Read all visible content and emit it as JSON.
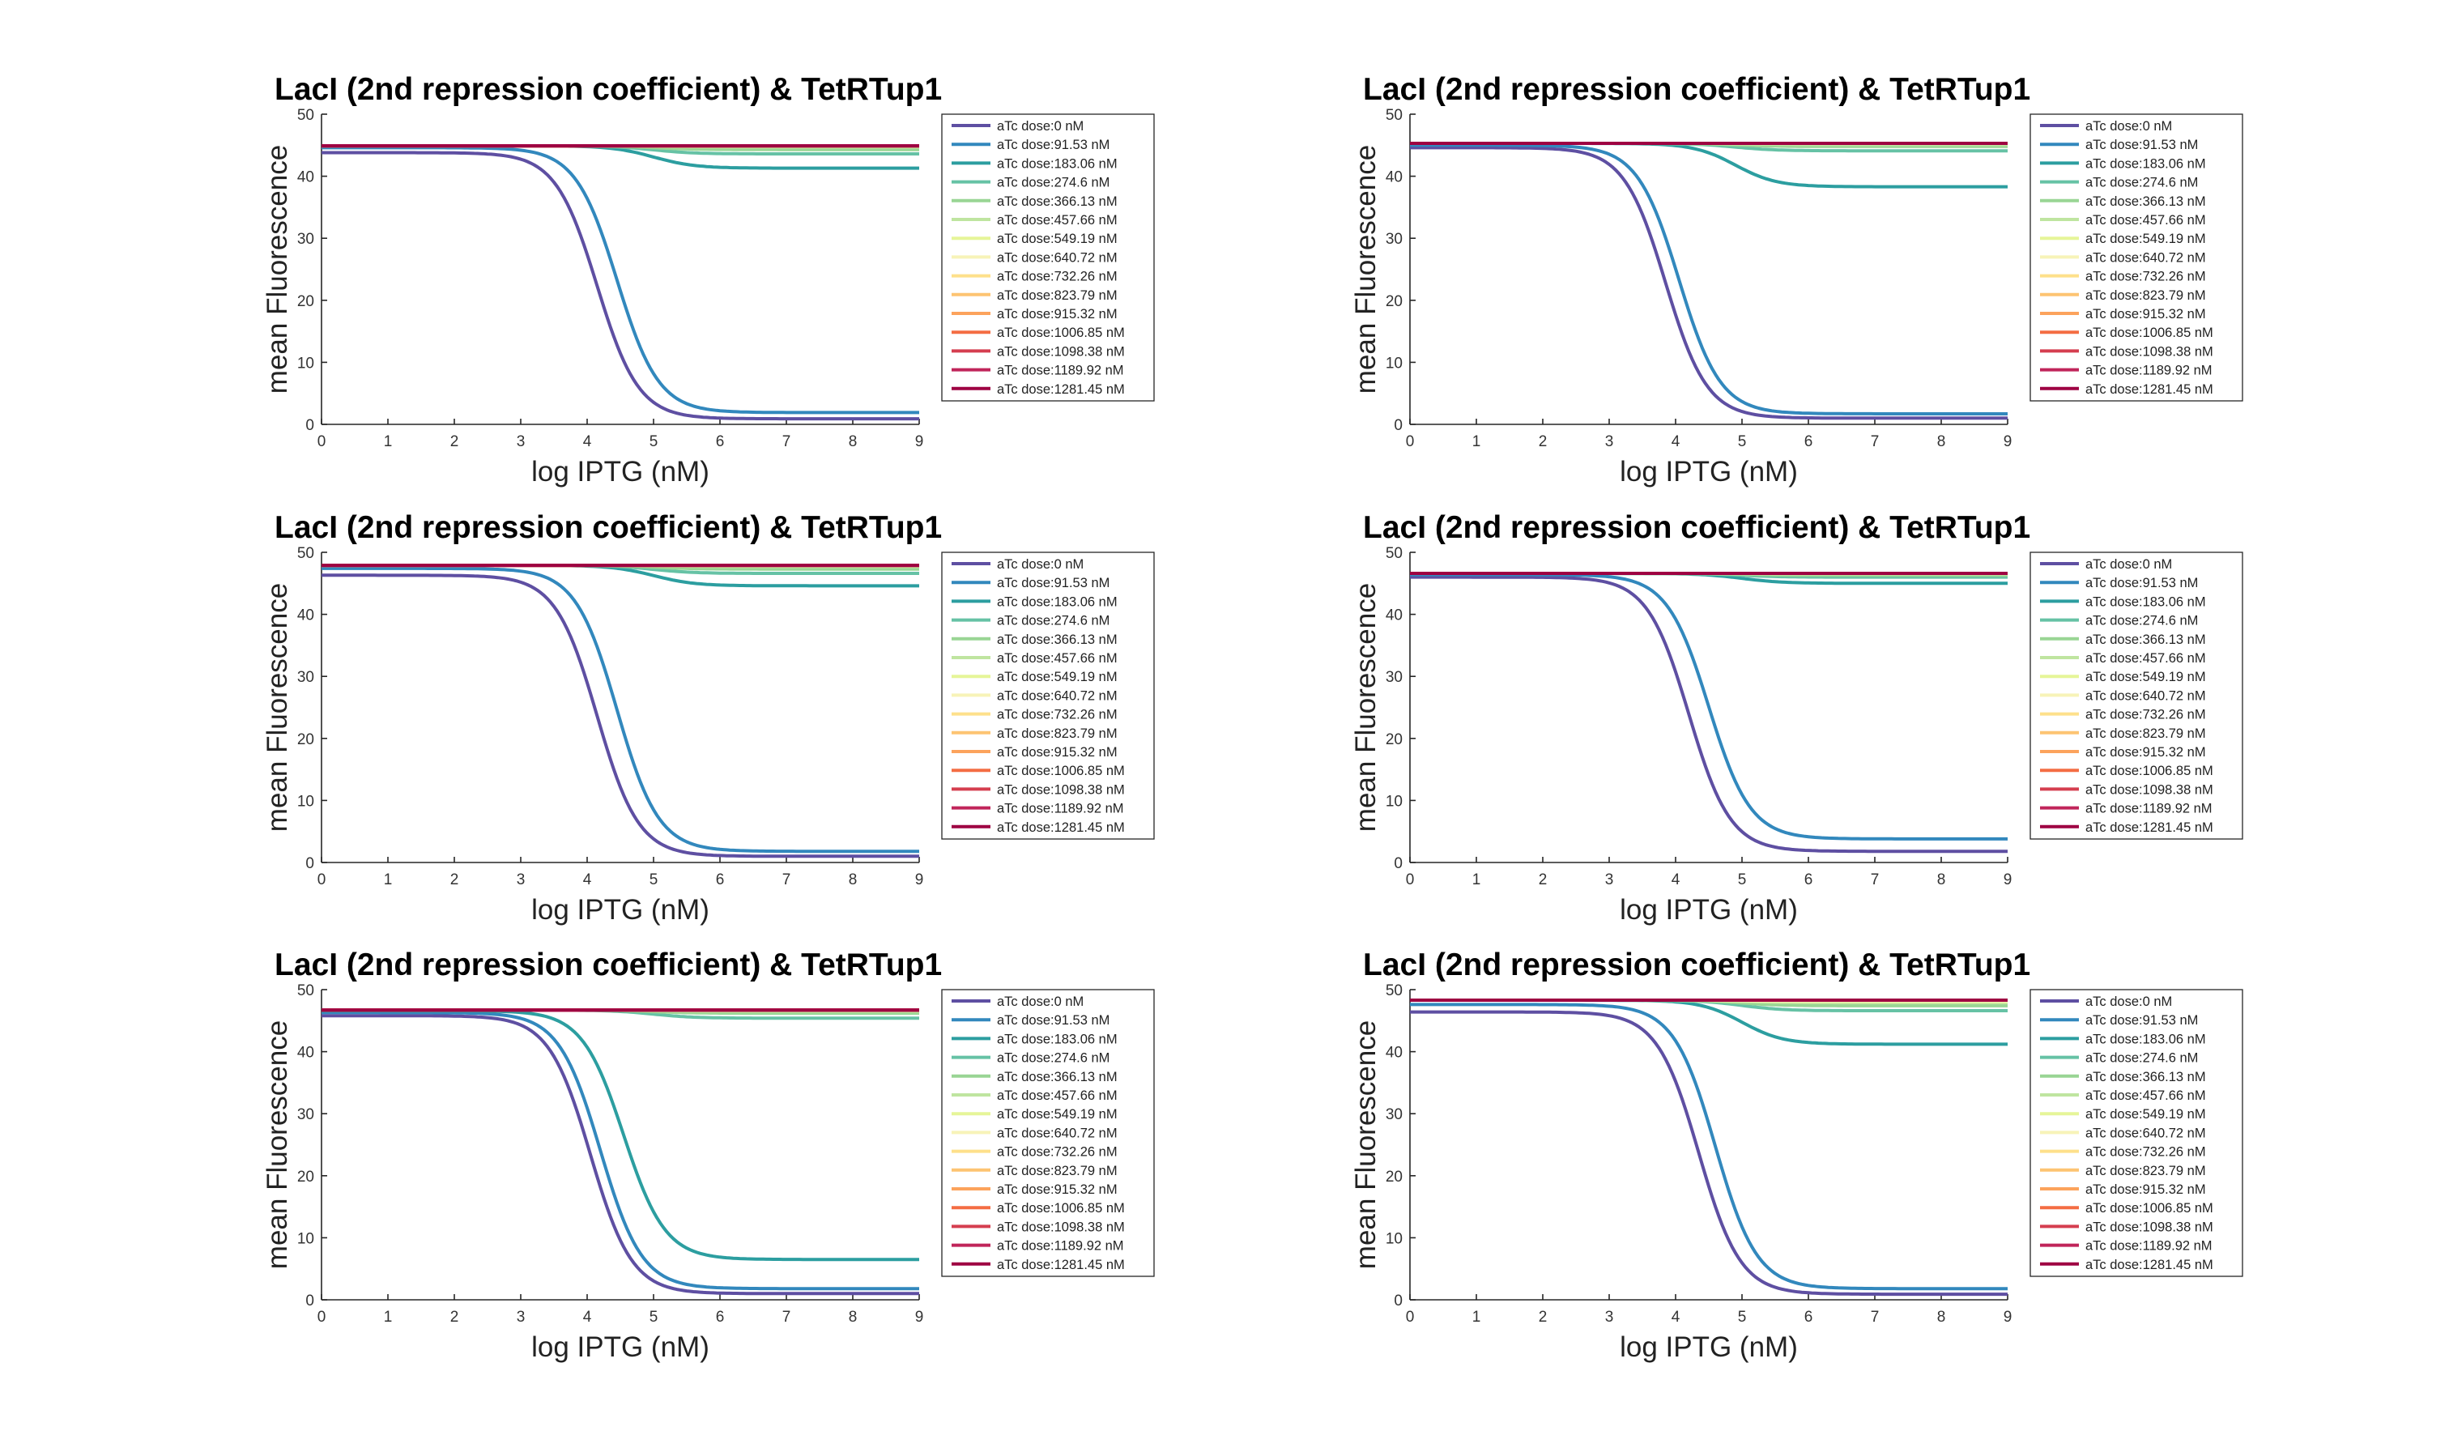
{
  "chart_data": [
    {
      "type": "line",
      "title": "LacI (2nd repression coefficient) & TetRTup1",
      "xlabel": "log IPTG (nM)",
      "ylabel": "mean Fluorescence",
      "xlim": [
        0,
        9
      ],
      "ylim": [
        0,
        50
      ],
      "xticks": [
        "0",
        "1",
        "2",
        "3",
        "4",
        "5",
        "6",
        "7",
        "8",
        "9"
      ],
      "yticks": [
        "0",
        "10",
        "20",
        "30",
        "40",
        "50"
      ],
      "legend_position": "outside-right-top",
      "series": [
        {
          "name": "aTc dose:0 nM",
          "color": "#5e4fa2",
          "y_low": 0.9,
          "y_high": 43.8,
          "midpoint": 4.15
        },
        {
          "name": "aTc dose:91.53 nM",
          "color": "#3288bd",
          "y_low": 1.9,
          "y_high": 44.6,
          "midpoint": 4.45
        },
        {
          "name": "aTc dose:183.06 nM",
          "color": "#2c9ea0",
          "y_low": 41.3,
          "y_high": 44.9,
          "midpoint": 5.0
        },
        {
          "name": "aTc dose:274.6 nM",
          "color": "#66c2a5",
          "y_low": 43.6,
          "y_high": 44.9,
          "midpoint": 5.0
        },
        {
          "name": "aTc dose:366.13 nM",
          "color": "#99d594",
          "y_low": 44.3,
          "y_high": 44.9,
          "midpoint": 5.0
        },
        {
          "name": "aTc dose:457.66 nM",
          "color": "#bfe5a0",
          "y_low": 44.7,
          "y_high": 44.9,
          "midpoint": 5.0
        },
        {
          "name": "aTc dose:549.19 nM",
          "color": "#e6f598",
          "y_low": 44.9,
          "y_high": 44.9,
          "midpoint": 5.0
        },
        {
          "name": "aTc dose:640.72 nM",
          "color": "#f7f3b8",
          "y_low": 44.9,
          "y_high": 44.9,
          "midpoint": 5.0
        },
        {
          "name": "aTc dose:732.26 nM",
          "color": "#fee08b",
          "y_low": 44.9,
          "y_high": 44.9,
          "midpoint": 5.0
        },
        {
          "name": "aTc dose:823.79 nM",
          "color": "#fdc472",
          "y_low": 44.9,
          "y_high": 44.9,
          "midpoint": 5.0
        },
        {
          "name": "aTc dose:915.32 nM",
          "color": "#fca35c",
          "y_low": 44.9,
          "y_high": 44.9,
          "midpoint": 5.0
        },
        {
          "name": "aTc dose:1006.85 nM",
          "color": "#f46d43",
          "y_low": 44.9,
          "y_high": 44.9,
          "midpoint": 5.0
        },
        {
          "name": "aTc dose:1098.38 nM",
          "color": "#d53e4f",
          "y_low": 44.9,
          "y_high": 44.9,
          "midpoint": 5.0
        },
        {
          "name": "aTc dose:1189.92 nM",
          "color": "#c0255a",
          "y_low": 44.9,
          "y_high": 44.9,
          "midpoint": 5.0
        },
        {
          "name": "aTc dose:1281.45 nM",
          "color": "#9e0142",
          "y_low": 44.9,
          "y_high": 44.9,
          "midpoint": 5.0
        }
      ]
    },
    {
      "type": "line",
      "title": "LacI (2nd repression coefficient) & TetRTup1",
      "xlabel": "log IPTG (nM)",
      "ylabel": "mean Fluorescence",
      "xlim": [
        0,
        9
      ],
      "ylim": [
        0,
        50
      ],
      "xticks": [
        "0",
        "1",
        "2",
        "3",
        "4",
        "5",
        "6",
        "7",
        "8",
        "9"
      ],
      "yticks": [
        "0",
        "10",
        "20",
        "30",
        "40",
        "50"
      ],
      "legend_position": "outside-right-top",
      "series": [
        {
          "name": "aTc dose:0 nM",
          "color": "#5e4fa2",
          "y_low": 1.0,
          "y_high": 44.6,
          "midpoint": 3.85
        },
        {
          "name": "aTc dose:91.53 nM",
          "color": "#3288bd",
          "y_low": 1.7,
          "y_high": 45.0,
          "midpoint": 4.05
        },
        {
          "name": "aTc dose:183.06 nM",
          "color": "#2c9ea0",
          "y_low": 38.3,
          "y_high": 45.3,
          "midpoint": 4.9
        },
        {
          "name": "aTc dose:274.6 nM",
          "color": "#66c2a5",
          "y_low": 44.1,
          "y_high": 45.3,
          "midpoint": 4.9
        },
        {
          "name": "aTc dose:366.13 nM",
          "color": "#99d594",
          "y_low": 44.8,
          "y_high": 45.3,
          "midpoint": 4.9
        },
        {
          "name": "aTc dose:457.66 nM",
          "color": "#bfe5a0",
          "y_low": 45.1,
          "y_high": 45.3,
          "midpoint": 4.9
        },
        {
          "name": "aTc dose:549.19 nM",
          "color": "#e6f598",
          "y_low": 45.3,
          "y_high": 45.3,
          "midpoint": 4.9
        },
        {
          "name": "aTc dose:640.72 nM",
          "color": "#f7f3b8",
          "y_low": 45.3,
          "y_high": 45.3,
          "midpoint": 4.9
        },
        {
          "name": "aTc dose:732.26 nM",
          "color": "#fee08b",
          "y_low": 45.3,
          "y_high": 45.3,
          "midpoint": 4.9
        },
        {
          "name": "aTc dose:823.79 nM",
          "color": "#fdc472",
          "y_low": 45.3,
          "y_high": 45.3,
          "midpoint": 4.9
        },
        {
          "name": "aTc dose:915.32 nM",
          "color": "#fca35c",
          "y_low": 45.3,
          "y_high": 45.3,
          "midpoint": 4.9
        },
        {
          "name": "aTc dose:1006.85 nM",
          "color": "#f46d43",
          "y_low": 45.3,
          "y_high": 45.3,
          "midpoint": 4.9
        },
        {
          "name": "aTc dose:1098.38 nM",
          "color": "#d53e4f",
          "y_low": 45.3,
          "y_high": 45.3,
          "midpoint": 4.9
        },
        {
          "name": "aTc dose:1189.92 nM",
          "color": "#c0255a",
          "y_low": 45.3,
          "y_high": 45.3,
          "midpoint": 4.9
        },
        {
          "name": "aTc dose:1281.45 nM",
          "color": "#9e0142",
          "y_low": 45.3,
          "y_high": 45.3,
          "midpoint": 4.9
        }
      ]
    },
    {
      "type": "line",
      "title": "LacI (2nd repression coefficient) & TetRTup1",
      "xlabel": "log IPTG (nM)",
      "ylabel": "mean Fluorescence",
      "xlim": [
        0,
        9
      ],
      "ylim": [
        0,
        50
      ],
      "xticks": [
        "0",
        "1",
        "2",
        "3",
        "4",
        "5",
        "6",
        "7",
        "8",
        "9"
      ],
      "yticks": [
        "0",
        "10",
        "20",
        "30",
        "40",
        "50"
      ],
      "legend_position": "outside-right-top",
      "series": [
        {
          "name": "aTc dose:0 nM",
          "color": "#5e4fa2",
          "y_low": 1.0,
          "y_high": 46.3,
          "midpoint": 4.15
        },
        {
          "name": "aTc dose:91.53 nM",
          "color": "#3288bd",
          "y_low": 1.8,
          "y_high": 47.4,
          "midpoint": 4.45
        },
        {
          "name": "aTc dose:183.06 nM",
          "color": "#2c9ea0",
          "y_low": 44.6,
          "y_high": 47.9,
          "midpoint": 5.0
        },
        {
          "name": "aTc dose:274.6 nM",
          "color": "#66c2a5",
          "y_low": 46.6,
          "y_high": 47.9,
          "midpoint": 5.0
        },
        {
          "name": "aTc dose:366.13 nM",
          "color": "#99d594",
          "y_low": 47.3,
          "y_high": 47.9,
          "midpoint": 5.0
        },
        {
          "name": "aTc dose:457.66 nM",
          "color": "#bfe5a0",
          "y_low": 47.7,
          "y_high": 47.9,
          "midpoint": 5.0
        },
        {
          "name": "aTc dose:549.19 nM",
          "color": "#e6f598",
          "y_low": 47.9,
          "y_high": 47.9,
          "midpoint": 5.0
        },
        {
          "name": "aTc dose:640.72 nM",
          "color": "#f7f3b8",
          "y_low": 47.9,
          "y_high": 47.9,
          "midpoint": 5.0
        },
        {
          "name": "aTc dose:732.26 nM",
          "color": "#fee08b",
          "y_low": 47.9,
          "y_high": 47.9,
          "midpoint": 5.0
        },
        {
          "name": "aTc dose:823.79 nM",
          "color": "#fdc472",
          "y_low": 47.9,
          "y_high": 47.9,
          "midpoint": 5.0
        },
        {
          "name": "aTc dose:915.32 nM",
          "color": "#fca35c",
          "y_low": 47.9,
          "y_high": 47.9,
          "midpoint": 5.0
        },
        {
          "name": "aTc dose:1006.85 nM",
          "color": "#f46d43",
          "y_low": 47.9,
          "y_high": 47.9,
          "midpoint": 5.0
        },
        {
          "name": "aTc dose:1098.38 nM",
          "color": "#d53e4f",
          "y_low": 47.9,
          "y_high": 47.9,
          "midpoint": 5.0
        },
        {
          "name": "aTc dose:1189.92 nM",
          "color": "#c0255a",
          "y_low": 47.9,
          "y_high": 47.9,
          "midpoint": 5.0
        },
        {
          "name": "aTc dose:1281.45 nM",
          "color": "#9e0142",
          "y_low": 47.9,
          "y_high": 47.9,
          "midpoint": 5.0
        }
      ]
    },
    {
      "type": "line",
      "title": "LacI (2nd repression coefficient) & TetRTup1",
      "xlabel": "log IPTG (nM)",
      "ylabel": "mean Fluorescence",
      "xlim": [
        0,
        9
      ],
      "ylim": [
        0,
        50
      ],
      "xticks": [
        "0",
        "1",
        "2",
        "3",
        "4",
        "5",
        "6",
        "7",
        "8",
        "9"
      ],
      "yticks": [
        "0",
        "10",
        "20",
        "30",
        "40",
        "50"
      ],
      "legend_position": "outside-right-top",
      "series": [
        {
          "name": "aTc dose:0 nM",
          "color": "#5e4fa2",
          "y_low": 1.8,
          "y_high": 46.0,
          "midpoint": 4.2
        },
        {
          "name": "aTc dose:91.53 nM",
          "color": "#3288bd",
          "y_low": 3.8,
          "y_high": 46.4,
          "midpoint": 4.5
        },
        {
          "name": "aTc dose:183.06 nM",
          "color": "#2c9ea0",
          "y_low": 45.0,
          "y_high": 46.6,
          "midpoint": 5.0
        },
        {
          "name": "aTc dose:274.6 nM",
          "color": "#66c2a5",
          "y_low": 46.0,
          "y_high": 46.6,
          "midpoint": 5.0
        },
        {
          "name": "aTc dose:366.13 nM",
          "color": "#99d594",
          "y_low": 46.3,
          "y_high": 46.6,
          "midpoint": 5.0
        },
        {
          "name": "aTc dose:457.66 nM",
          "color": "#bfe5a0",
          "y_low": 46.5,
          "y_high": 46.6,
          "midpoint": 5.0
        },
        {
          "name": "aTc dose:549.19 nM",
          "color": "#e6f598",
          "y_low": 46.6,
          "y_high": 46.6,
          "midpoint": 5.0
        },
        {
          "name": "aTc dose:640.72 nM",
          "color": "#f7f3b8",
          "y_low": 46.6,
          "y_high": 46.6,
          "midpoint": 5.0
        },
        {
          "name": "aTc dose:732.26 nM",
          "color": "#fee08b",
          "y_low": 46.6,
          "y_high": 46.6,
          "midpoint": 5.0
        },
        {
          "name": "aTc dose:823.79 nM",
          "color": "#fdc472",
          "y_low": 46.6,
          "y_high": 46.6,
          "midpoint": 5.0
        },
        {
          "name": "aTc dose:915.32 nM",
          "color": "#fca35c",
          "y_low": 46.6,
          "y_high": 46.6,
          "midpoint": 5.0
        },
        {
          "name": "aTc dose:1006.85 nM",
          "color": "#f46d43",
          "y_low": 46.6,
          "y_high": 46.6,
          "midpoint": 5.0
        },
        {
          "name": "aTc dose:1098.38 nM",
          "color": "#d53e4f",
          "y_low": 46.6,
          "y_high": 46.6,
          "midpoint": 5.0
        },
        {
          "name": "aTc dose:1189.92 nM",
          "color": "#c0255a",
          "y_low": 46.6,
          "y_high": 46.6,
          "midpoint": 5.0
        },
        {
          "name": "aTc dose:1281.45 nM",
          "color": "#9e0142",
          "y_low": 46.6,
          "y_high": 46.6,
          "midpoint": 5.0
        }
      ]
    },
    {
      "type": "line",
      "title": "LacI (2nd repression coefficient) & TetRTup1",
      "xlabel": "log IPTG (nM)",
      "ylabel": "mean Fluorescence",
      "xlim": [
        0,
        9
      ],
      "ylim": [
        0,
        50
      ],
      "xticks": [
        "0",
        "1",
        "2",
        "3",
        "4",
        "5",
        "6",
        "7",
        "8",
        "9"
      ],
      "yticks": [
        "0",
        "10",
        "20",
        "30",
        "40",
        "50"
      ],
      "legend_position": "outside-right-top",
      "series": [
        {
          "name": "aTc dose:0 nM",
          "color": "#5e4fa2",
          "y_low": 1.0,
          "y_high": 45.8,
          "midpoint": 4.05
        },
        {
          "name": "aTc dose:91.53 nM",
          "color": "#3288bd",
          "y_low": 1.8,
          "y_high": 46.3,
          "midpoint": 4.2
        },
        {
          "name": "aTc dose:183.06 nM",
          "color": "#2c9ea0",
          "y_low": 6.5,
          "y_high": 46.6,
          "midpoint": 4.55
        },
        {
          "name": "aTc dose:274.6 nM",
          "color": "#66c2a5",
          "y_low": 45.4,
          "y_high": 46.7,
          "midpoint": 5.0
        },
        {
          "name": "aTc dose:366.13 nM",
          "color": "#99d594",
          "y_low": 46.2,
          "y_high": 46.7,
          "midpoint": 5.0
        },
        {
          "name": "aTc dose:457.66 nM",
          "color": "#bfe5a0",
          "y_low": 46.5,
          "y_high": 46.7,
          "midpoint": 5.0
        },
        {
          "name": "aTc dose:549.19 nM",
          "color": "#e6f598",
          "y_low": 46.7,
          "y_high": 46.7,
          "midpoint": 5.0
        },
        {
          "name": "aTc dose:640.72 nM",
          "color": "#f7f3b8",
          "y_low": 46.7,
          "y_high": 46.7,
          "midpoint": 5.0
        },
        {
          "name": "aTc dose:732.26 nM",
          "color": "#fee08b",
          "y_low": 46.7,
          "y_high": 46.7,
          "midpoint": 5.0
        },
        {
          "name": "aTc dose:823.79 nM",
          "color": "#fdc472",
          "y_low": 46.7,
          "y_high": 46.7,
          "midpoint": 5.0
        },
        {
          "name": "aTc dose:915.32 nM",
          "color": "#fca35c",
          "y_low": 46.7,
          "y_high": 46.7,
          "midpoint": 5.0
        },
        {
          "name": "aTc dose:1006.85 nM",
          "color": "#f46d43",
          "y_low": 46.7,
          "y_high": 46.7,
          "midpoint": 5.0
        },
        {
          "name": "aTc dose:1098.38 nM",
          "color": "#d53e4f",
          "y_low": 46.7,
          "y_high": 46.7,
          "midpoint": 5.0
        },
        {
          "name": "aTc dose:1189.92 nM",
          "color": "#c0255a",
          "y_low": 46.7,
          "y_high": 46.7,
          "midpoint": 5.0
        },
        {
          "name": "aTc dose:1281.45 nM",
          "color": "#9e0142",
          "y_low": 46.7,
          "y_high": 46.7,
          "midpoint": 5.0
        }
      ]
    },
    {
      "type": "line",
      "title": "LacI (2nd repression coefficient) & TetRTup1",
      "xlabel": "log IPTG (nM)",
      "ylabel": "mean Fluorescence",
      "xlim": [
        0,
        9
      ],
      "ylim": [
        0,
        50
      ],
      "xticks": [
        "0",
        "1",
        "2",
        "3",
        "4",
        "5",
        "6",
        "7",
        "8",
        "9"
      ],
      "yticks": [
        "0",
        "10",
        "20",
        "30",
        "40",
        "50"
      ],
      "legend_position": "outside-right-top",
      "series": [
        {
          "name": "aTc dose:0 nM",
          "color": "#5e4fa2",
          "y_low": 0.9,
          "y_high": 46.4,
          "midpoint": 4.35
        },
        {
          "name": "aTc dose:91.53 nM",
          "color": "#3288bd",
          "y_low": 1.8,
          "y_high": 47.6,
          "midpoint": 4.6
        },
        {
          "name": "aTc dose:183.06 nM",
          "color": "#2c9ea0",
          "y_low": 41.2,
          "y_high": 48.3,
          "midpoint": 5.0
        },
        {
          "name": "aTc dose:274.6 nM",
          "color": "#66c2a5",
          "y_low": 46.6,
          "y_high": 48.3,
          "midpoint": 5.0
        },
        {
          "name": "aTc dose:366.13 nM",
          "color": "#99d594",
          "y_low": 47.4,
          "y_high": 48.3,
          "midpoint": 5.0
        },
        {
          "name": "aTc dose:457.66 nM",
          "color": "#bfe5a0",
          "y_low": 47.9,
          "y_high": 48.3,
          "midpoint": 5.0
        },
        {
          "name": "aTc dose:549.19 nM",
          "color": "#e6f598",
          "y_low": 48.1,
          "y_high": 48.3,
          "midpoint": 5.0
        },
        {
          "name": "aTc dose:640.72 nM",
          "color": "#f7f3b8",
          "y_low": 48.2,
          "y_high": 48.3,
          "midpoint": 5.0
        },
        {
          "name": "aTc dose:732.26 nM",
          "color": "#fee08b",
          "y_low": 48.3,
          "y_high": 48.3,
          "midpoint": 5.0
        },
        {
          "name": "aTc dose:823.79 nM",
          "color": "#fdc472",
          "y_low": 48.3,
          "y_high": 48.3,
          "midpoint": 5.0
        },
        {
          "name": "aTc dose:915.32 nM",
          "color": "#fca35c",
          "y_low": 48.3,
          "y_high": 48.3,
          "midpoint": 5.0
        },
        {
          "name": "aTc dose:1006.85 nM",
          "color": "#f46d43",
          "y_low": 48.3,
          "y_high": 48.3,
          "midpoint": 5.0
        },
        {
          "name": "aTc dose:1098.38 nM",
          "color": "#d53e4f",
          "y_low": 48.3,
          "y_high": 48.3,
          "midpoint": 5.0
        },
        {
          "name": "aTc dose:1189.92 nM",
          "color": "#c0255a",
          "y_low": 48.3,
          "y_high": 48.3,
          "midpoint": 5.0
        },
        {
          "name": "aTc dose:1281.45 nM",
          "color": "#9e0142",
          "y_low": 48.3,
          "y_high": 48.3,
          "midpoint": 5.0
        }
      ]
    }
  ]
}
